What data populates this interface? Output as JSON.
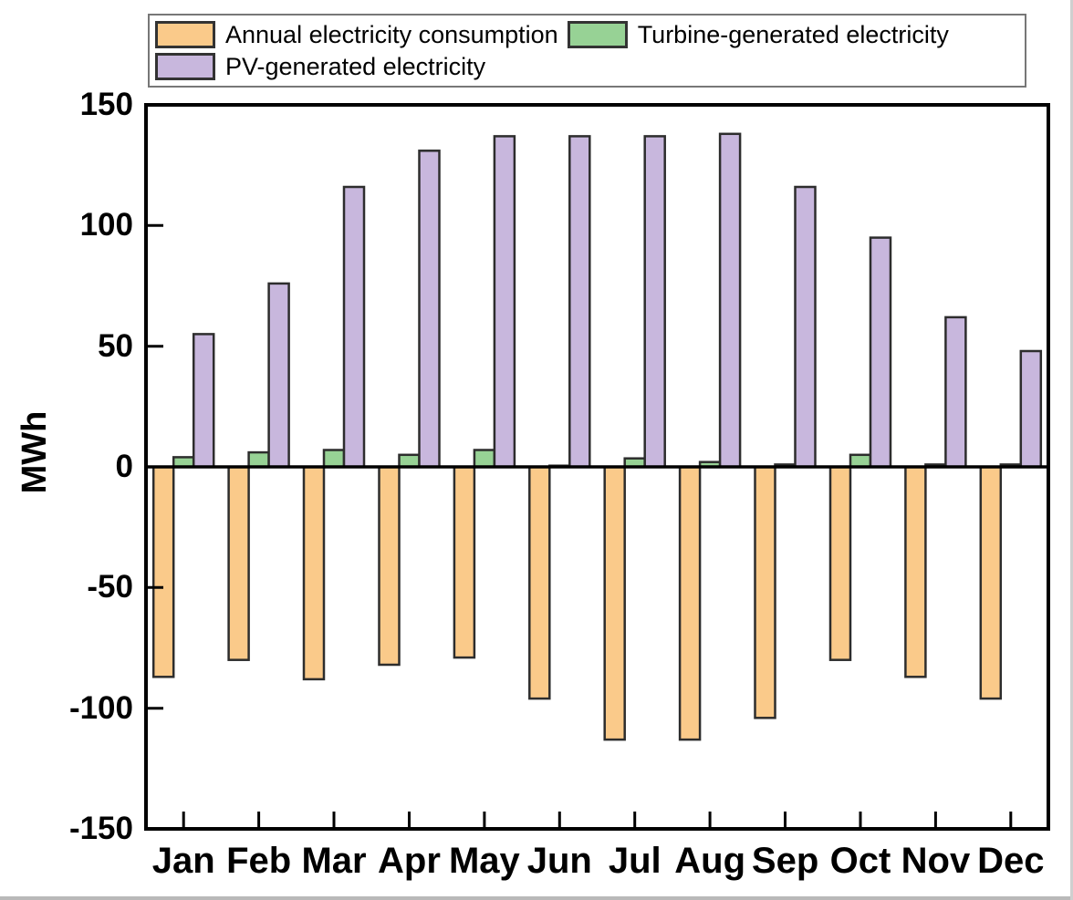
{
  "chart_data": {
    "type": "bar",
    "title": "",
    "xlabel": "",
    "ylabel": "MWh",
    "ylim": [
      -150,
      150
    ],
    "yticks": [
      150,
      100,
      50,
      0,
      -50,
      -100,
      -150
    ],
    "grid": false,
    "legend_position": "top",
    "bar_outline_color": "#2d2d2d",
    "axis_color": "#000000",
    "categories": [
      "Jan",
      "Feb",
      "Mar",
      "Apr",
      "May",
      "Jun",
      "Jul",
      "Aug",
      "Sep",
      "Oct",
      "Nov",
      "Dec"
    ],
    "series": [
      {
        "name": "Annual electricity consumption",
        "color": "#FACA8A",
        "values": [
          -87,
          -80,
          -88,
          -82,
          -79,
          -96,
          -113,
          -113,
          -104,
          -80,
          -87,
          -96
        ]
      },
      {
        "name": "Turbine-generated electricity",
        "color": "#97D295",
        "values": [
          4,
          6,
          7,
          5,
          7,
          0.5,
          3.5,
          2,
          1,
          5,
          1,
          1
        ]
      },
      {
        "name": "PV-generated electricity",
        "color": "#C8B7DD",
        "values": [
          55,
          76,
          116,
          131,
          137,
          137,
          137,
          138,
          116,
          95,
          62,
          48
        ]
      }
    ]
  }
}
